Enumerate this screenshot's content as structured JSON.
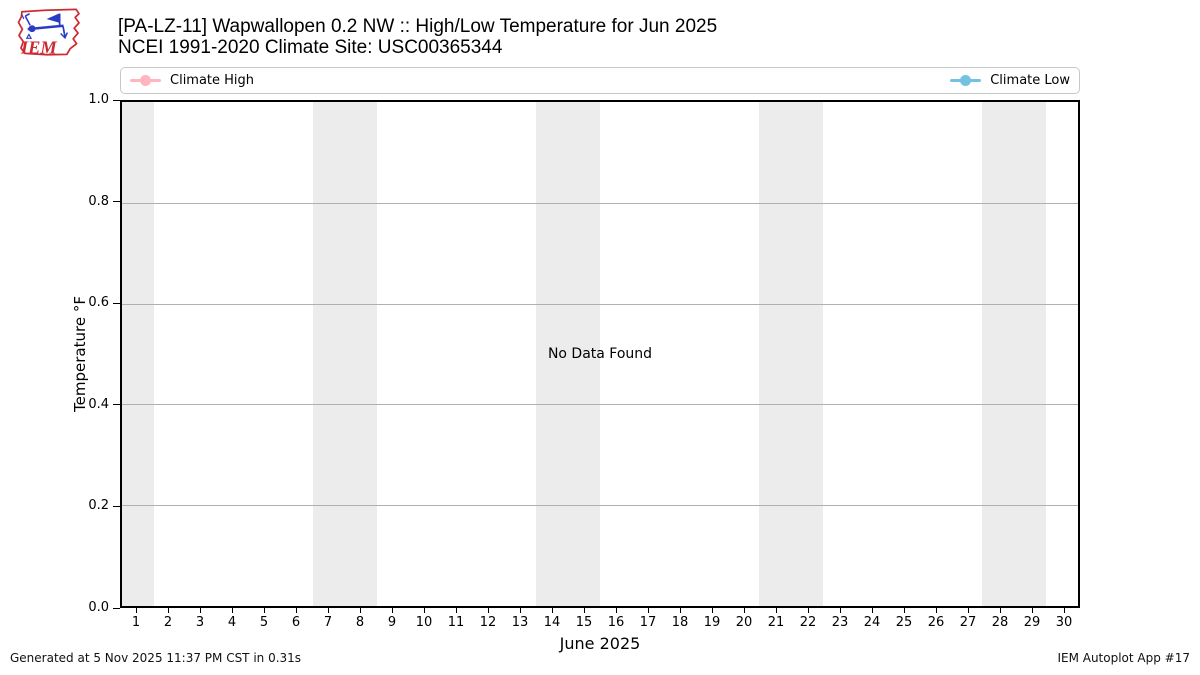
{
  "header": {
    "title": "[PA-LZ-11] Wapwallopen 0.2 NW :: High/Low Temperature for Jun 2025",
    "subtitle": "NCEI 1991-2020 Climate Site: USC00365344",
    "logo_text": "IEM"
  },
  "legend": {
    "position": "top",
    "items": [
      {
        "label": "Climate High",
        "color": "#ffb6c1"
      },
      {
        "label": "Climate Low",
        "color": "#74c2e1"
      }
    ]
  },
  "chart_data": {
    "type": "line",
    "title": "[PA-LZ-11] Wapwallopen 0.2 NW :: High/Low Temperature for Jun 2025",
    "subtitle": "NCEI 1991-2020 Climate Site: USC00365344",
    "xlabel": "June 2025",
    "ylabel": "Temperature °F",
    "xlim": [
      0.5,
      30.5
    ],
    "ylim": [
      0.0,
      1.0
    ],
    "x_ticks": [
      1,
      2,
      3,
      4,
      5,
      6,
      7,
      8,
      9,
      10,
      11,
      12,
      13,
      14,
      15,
      16,
      17,
      18,
      19,
      20,
      21,
      22,
      23,
      24,
      25,
      26,
      27,
      28,
      29,
      30
    ],
    "y_ticks": [
      "0.0",
      "0.2",
      "0.4",
      "0.6",
      "0.8",
      "1.0"
    ],
    "grid": true,
    "legend_position": "top",
    "weekend_bands": [
      [
        0.5,
        1.5
      ],
      [
        6.5,
        8.5
      ],
      [
        13.5,
        15.5
      ],
      [
        20.5,
        22.5
      ],
      [
        27.5,
        29.5
      ]
    ],
    "series": [
      {
        "name": "Climate High",
        "color": "#ffb6c1",
        "x": [],
        "values": []
      },
      {
        "name": "Climate Low",
        "color": "#74c2e1",
        "x": [],
        "values": []
      }
    ],
    "no_data_message": "No Data Found"
  },
  "footer": {
    "left": "Generated at 5 Nov 2025 11:37 PM CST in 0.31s",
    "right": "IEM Autoplot App #17"
  },
  "colors": {
    "band": "#ececec",
    "grid": "#b0b0b0",
    "axis": "#000000",
    "legend_border": "#c8c8c8",
    "logo_red": "#cc2b33",
    "logo_blue": "#2b3cc4"
  }
}
